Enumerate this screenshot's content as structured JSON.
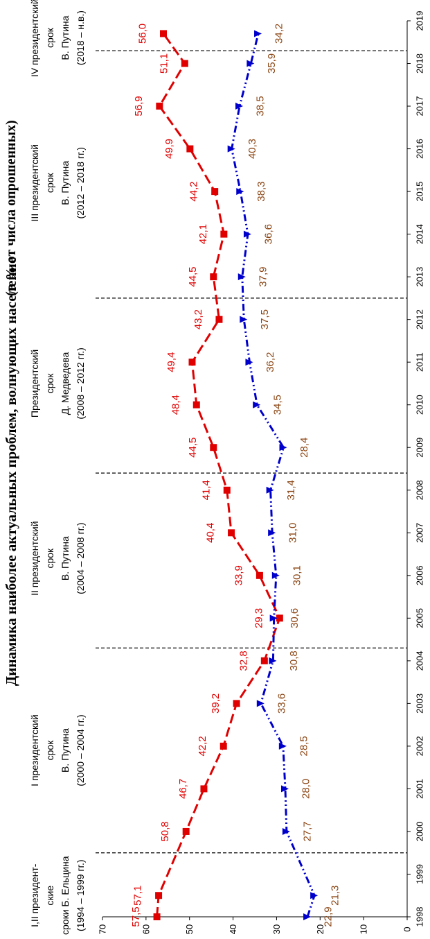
{
  "chart_data": {
    "type": "line",
    "title": "Динамика наиболее актуальных проблем, волнующих население",
    "title_note": "(в % от числа опрошенных)",
    "orientation": "rotated-90-ccw",
    "x": [
      1998,
      1999,
      2000,
      2001,
      2002,
      2003,
      2004,
      2005,
      2006,
      2007,
      2008,
      2009,
      2010,
      2011,
      2012,
      2013,
      2014,
      2015,
      2016,
      2017,
      2018,
      2019
    ],
    "x_tick_labels": [
      "1998",
      "1999",
      "2000",
      "2001",
      "2002",
      "2003",
      "2004",
      "2005",
      "2006",
      "2007",
      "2008",
      "2009",
      "2010",
      "2011",
      "2012",
      "2013",
      "2014",
      "2015",
      "2016",
      "2017",
      "2018",
      "2019"
    ],
    "ylim": [
      0,
      70
    ],
    "y_ticks": [
      0,
      10,
      20,
      30,
      40,
      50,
      60,
      70
    ],
    "y_tick_labels": [
      "0",
      "10",
      "20",
      "30",
      "40",
      "50",
      "60",
      "70"
    ],
    "series": [
      {
        "name": "series-red",
        "color": "#e00000",
        "label_color": "#e00000",
        "marker": "square",
        "x": [
          1998,
          1998.5,
          2000,
          2001,
          2002,
          2003,
          2004,
          2005,
          2006,
          2007,
          2008,
          2009,
          2010,
          2011,
          2012,
          2013,
          2014,
          2015,
          2016,
          2017,
          2018,
          2018.7
        ],
        "values": [
          57.5,
          57.1,
          50.8,
          46.7,
          42.2,
          39.2,
          32.8,
          29.3,
          33.9,
          40.4,
          41.4,
          44.5,
          48.4,
          49.4,
          43.2,
          44.5,
          42.1,
          44.2,
          49.9,
          56.9,
          51.1,
          56.0
        ],
        "labels": [
          "57,5",
          "57,1",
          "50,8",
          "46,7",
          "42,2",
          "39,2",
          "32,8",
          "29,3",
          "33,9",
          "40,4",
          "41,4",
          "44,5",
          "48,4",
          "49,4",
          "43,2",
          "44,5",
          "42,1",
          "44,2",
          "49,9",
          "56,9",
          "51,1",
          "56,0"
        ]
      },
      {
        "name": "series-blue",
        "color": "#0000cc",
        "label_color": "#8b4513",
        "marker": "triangle",
        "x": [
          1998,
          1998.5,
          2000,
          2001,
          2002,
          2003,
          2004,
          2005,
          2006,
          2007,
          2008,
          2009,
          2010,
          2011,
          2012,
          2013,
          2014,
          2015,
          2016,
          2017,
          2018,
          2018.7
        ],
        "values": [
          22.9,
          21.3,
          27.7,
          28.0,
          28.5,
          33.6,
          30.8,
          30.6,
          30.1,
          31.0,
          31.4,
          28.4,
          34.5,
          36.2,
          37.5,
          37.9,
          36.6,
          38.3,
          40.3,
          38.5,
          35.9,
          34.2
        ],
        "labels": [
          "22,9",
          "21,3",
          "27,7",
          "28,0",
          "28,5",
          "33,6",
          "30,8",
          "30,6",
          "30,1",
          "31,0",
          "31,4",
          "28,4",
          "34,5",
          "36,2",
          "37,5",
          "37,9",
          "36,6",
          "38,3",
          "40,3",
          "38,5",
          "35,9",
          "34,2"
        ]
      }
    ],
    "period_dividers_x": [
      1999.5,
      2004.3,
      2008.4,
      2012.5,
      2018.3
    ],
    "periods": [
      {
        "x_center": 1998.5,
        "lines": [
          "I,II президент-",
          "ские",
          "сроки Б. Ельцина",
          "(1994 – 1999 гг.)"
        ]
      },
      {
        "x_center": 2001.9,
        "lines": [
          "I президентский",
          "срок",
          "В. Путина",
          "(2000 – 2004 гг.)"
        ]
      },
      {
        "x_center": 2006.4,
        "lines": [
          "II президентский",
          "срок",
          "В. Путина",
          "(2004 – 2008 гг.)"
        ]
      },
      {
        "x_center": 2010.5,
        "lines": [
          "Президентский",
          "срок",
          "Д. Медведева",
          "(2008 – 2012 гг.)"
        ]
      },
      {
        "x_center": 2015.2,
        "lines": [
          "III президентский",
          "срок",
          "В. Путина",
          "(2012 – 2018 гг.)"
        ]
      },
      {
        "x_center": 2018.6,
        "lines": [
          "IV президентский",
          "срок",
          "В. Путина",
          "(2018 – н.в.)"
        ]
      }
    ]
  }
}
